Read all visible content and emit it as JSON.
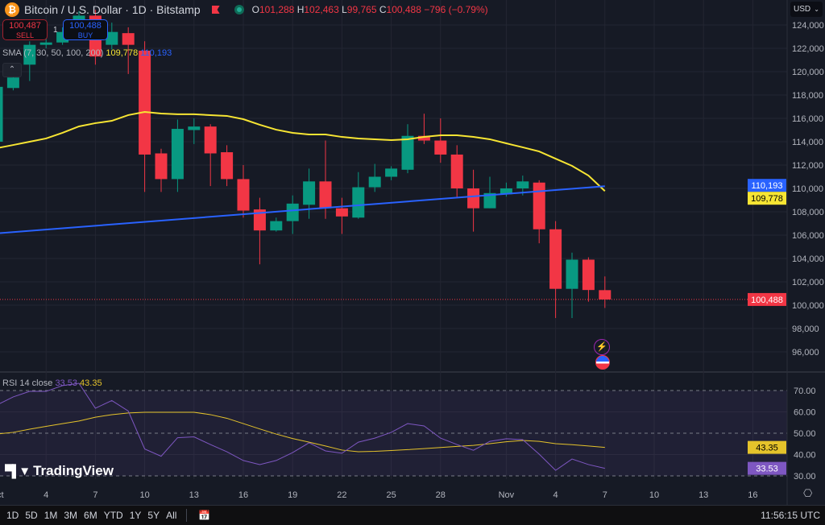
{
  "header": {
    "symbol": "Bitcoin / U.S. Dollar · 1D · Bitstamp",
    "open_label": "O",
    "open": "101,288",
    "high_label": "H",
    "high": "102,463",
    "low_label": "L",
    "low": "99,765",
    "close_label": "C",
    "close": "100,488",
    "change": "−796 (−0.79%)"
  },
  "trade": {
    "sell_price": "100,487",
    "sell_label": "SELL",
    "spread": "1",
    "buy_price": "100,488",
    "buy_label": "BUY"
  },
  "sma_legend": {
    "label": "SMA (7, 30, 50, 100, 200)",
    "value_yellow": "109,778",
    "value_blue": "110,193"
  },
  "rsi_legend": {
    "label": "RSI 14 close",
    "value_rsi": "33.53",
    "value_ma": "43.35"
  },
  "currency": "USD",
  "logo_text": "TradingView",
  "price_badges": {
    "last": "100,488",
    "sma_blue": "110,193",
    "sma_yellow": "109,778",
    "rsi": "33.53",
    "rsi_ma": "43.35"
  },
  "colors": {
    "up": "#089981",
    "down": "#f23645",
    "sma_yellow": "#f7e533",
    "sma_blue": "#2962ff",
    "rsi": "#7e57c2",
    "rsi_ma": "#e5c32b",
    "bg": "#161a25"
  },
  "timeframes": [
    "1D",
    "5D",
    "1M",
    "3M",
    "6M",
    "YTD",
    "1Y",
    "5Y",
    "All"
  ],
  "clock": "11:56:15 UTC",
  "chart_data": {
    "type": "candlestick",
    "title": "Bitcoin / U.S. Dollar · 1D · Bitstamp",
    "x_labels": [
      {
        "d": 0,
        "label": "Oct"
      },
      {
        "d": 3,
        "label": "4"
      },
      {
        "d": 6,
        "label": "7"
      },
      {
        "d": 9,
        "label": "10"
      },
      {
        "d": 12,
        "label": "13"
      },
      {
        "d": 15,
        "label": "16"
      },
      {
        "d": 18,
        "label": "19"
      },
      {
        "d": 21,
        "label": "22"
      },
      {
        "d": 24,
        "label": "25"
      },
      {
        "d": 27,
        "label": "28"
      },
      {
        "d": 31,
        "label": "Nov"
      },
      {
        "d": 34,
        "label": "4"
      },
      {
        "d": 37,
        "label": "7"
      },
      {
        "d": 40,
        "label": "10"
      },
      {
        "d": 43,
        "label": "13"
      },
      {
        "d": 46,
        "label": "16"
      }
    ],
    "price_ylim": [
      96000,
      124000
    ],
    "price_ticks": [
      "96,000",
      "98,000",
      "100,000",
      "102,000",
      "104,000",
      "106,000",
      "108,000",
      "110,000",
      "112,000",
      "114,000",
      "116,000",
      "118,000",
      "120,000",
      "122,000",
      "124,000"
    ],
    "ohlc": [
      [
        114000,
        119000,
        113500,
        118700
      ],
      [
        118600,
        120600,
        118400,
        119500
      ],
      [
        120600,
        122600,
        119200,
        122300
      ],
      [
        122300,
        122800,
        122000,
        122500
      ],
      [
        122500,
        123800,
        122300,
        123400
      ],
      [
        123400,
        125200,
        123000,
        124800
      ],
      [
        124800,
        125300,
        120600,
        121300
      ],
      [
        122300,
        124200,
        121900,
        123400
      ],
      [
        123300,
        123800,
        119800,
        122300
      ],
      [
        121800,
        122600,
        109700,
        112900
      ],
      [
        113000,
        113400,
        109700,
        110800
      ],
      [
        110800,
        115900,
        109700,
        115100
      ],
      [
        115000,
        116000,
        113800,
        115300
      ],
      [
        115300,
        115500,
        110200,
        113000
      ],
      [
        113100,
        113700,
        110200,
        110800
      ],
      [
        110800,
        112000,
        107500,
        108100
      ],
      [
        108200,
        109200,
        103500,
        106400
      ],
      [
        106400,
        107500,
        106300,
        107200
      ],
      [
        107200,
        109400,
        106100,
        108700
      ],
      [
        108600,
        111700,
        107400,
        110600
      ],
      [
        110600,
        114100,
        107400,
        108300
      ],
      [
        108300,
        109200,
        106100,
        107600
      ],
      [
        107500,
        111400,
        107400,
        110100
      ],
      [
        110100,
        112100,
        109700,
        111000
      ],
      [
        111000,
        111900,
        110700,
        111700
      ],
      [
        111600,
        115500,
        111300,
        114500
      ],
      [
        114500,
        116400,
        113800,
        114100
      ],
      [
        114100,
        116000,
        112200,
        112900
      ],
      [
        112900,
        113700,
        109200,
        110000
      ],
      [
        110000,
        111600,
        106300,
        108300
      ],
      [
        108300,
        111000,
        108300,
        109600
      ],
      [
        109500,
        110500,
        109300,
        110000
      ],
      [
        110000,
        111100,
        109400,
        110600
      ],
      [
        110500,
        110700,
        105300,
        106500
      ],
      [
        106500,
        107200,
        98900,
        101400
      ],
      [
        101400,
        104500,
        98900,
        103900
      ],
      [
        103900,
        104100,
        100300,
        101300
      ],
      [
        101288,
        102463,
        99765,
        100488
      ]
    ],
    "sma_yellow": [
      113450,
      113720,
      114000,
      114280,
      114760,
      115310,
      115590,
      115790,
      116280,
      116550,
      116410,
      116350,
      116350,
      116280,
      116210,
      115930,
      115450,
      115030,
      114760,
      114620,
      114620,
      114410,
      114280,
      114210,
      114140,
      114210,
      114410,
      114550,
      114550,
      114410,
      114210,
      113860,
      113520,
      113170,
      112550,
      111930,
      111100,
      109778
    ],
    "sma_blue": {
      "start": 106150,
      "end": 110193
    },
    "rsi_ylim": [
      30,
      70
    ],
    "rsi_ticks": [
      "30.00",
      "40.00",
      "50.00",
      "60.00",
      "70.00"
    ],
    "rsi": [
      63.2,
      67.0,
      69.6,
      69.6,
      72.3,
      73.4,
      61.7,
      65.3,
      60.4,
      42.6,
      39.2,
      47.9,
      48.3,
      44.7,
      41.3,
      37.2,
      35.3,
      37.2,
      40.9,
      45.5,
      41.7,
      40.6,
      45.8,
      47.7,
      50.4,
      54.5,
      53.4,
      47.7,
      44.7,
      42.0,
      46.2,
      47.4,
      47.0,
      40.2,
      32.6,
      37.9,
      35.3,
      33.53
    ],
    "rsi_ma": [
      49.6,
      50.4,
      51.9,
      53.2,
      54.5,
      55.7,
      57.5,
      58.7,
      59.5,
      59.8,
      59.8,
      59.8,
      59.8,
      58.7,
      57.0,
      54.5,
      52.0,
      49.6,
      47.5,
      45.8,
      44.0,
      42.1,
      41.3,
      41.5,
      41.9,
      42.3,
      42.8,
      43.3,
      43.8,
      44.3,
      45.1,
      46.0,
      46.6,
      46.2,
      45.1,
      44.6,
      44.0,
      43.35
    ]
  }
}
